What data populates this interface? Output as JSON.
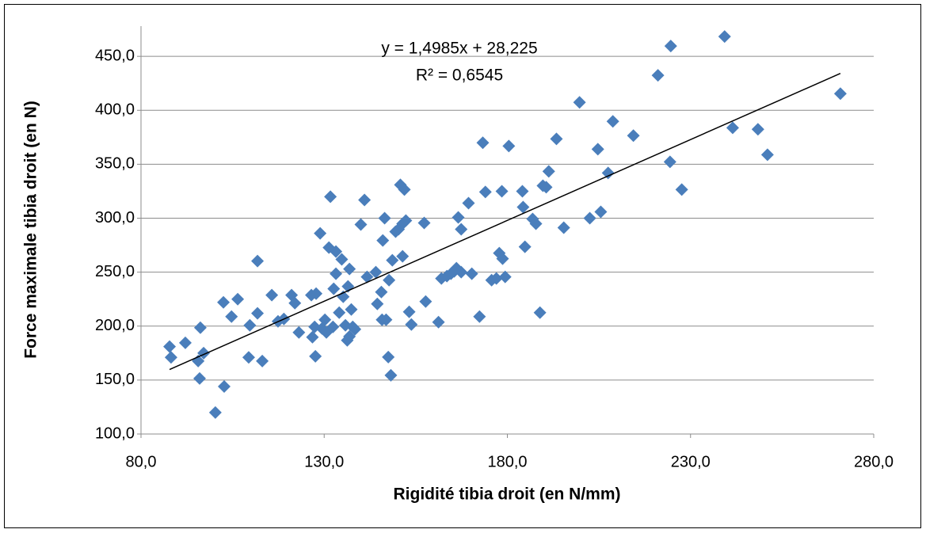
{
  "chart_data": {
    "type": "scatter",
    "x_label": "Rigidité tibia droit (en N/mm)",
    "y_label": "Force maximale tibia droit (en N)",
    "color": "#4a7ebb",
    "x": [
      87.8,
      88.2,
      92.1,
      96.2,
      95.6,
      97.1,
      96.0,
      102.5,
      106.4,
      104.7,
      102.7,
      100.3,
      109.4,
      109.7,
      111.8,
      111.8,
      113.1,
      115.7,
      117.4,
      119.0,
      121.1,
      122.0,
      123.1,
      126.5,
      127.8,
      127.6,
      127.4,
      126.8,
      128.9,
      129.4,
      130.2,
      130.6,
      131.3,
      132.6,
      131.7,
      133.2,
      133.2,
      132.4,
      134.1,
      134.8,
      135.2,
      135.8,
      136.5,
      136.3,
      136.9,
      137.4,
      137.8,
      138.4,
      136.9,
      140.0,
      141.0,
      141.7,
      144.1,
      144.5,
      145.6,
      146.0,
      146.5,
      145.8,
      146.9,
      147.5,
      148.2,
      147.7,
      148.6,
      149.5,
      150.3,
      151.4,
      152.3,
      150.8,
      151.9,
      151.4,
      153.2,
      153.8,
      157.3,
      157.7,
      161.2,
      162.0,
      163.5,
      164.6,
      165.5,
      166.1,
      167.4,
      167.4,
      166.6,
      169.4,
      170.3,
      172.4,
      173.3,
      174.0,
      175.7,
      177.0,
      177.8,
      178.7,
      178.5,
      179.4,
      180.4,
      184.1,
      184.3,
      184.8,
      186.9,
      187.8,
      188.9,
      189.7,
      190.6,
      191.3,
      193.4,
      195.4,
      199.7,
      202.5,
      204.7,
      205.5,
      207.5,
      208.8,
      214.4,
      221.1,
      224.4,
      224.6,
      227.6,
      239.3,
      241.5,
      248.4,
      251.0,
      270.9
    ],
    "values": [
      181.0,
      171.0,
      184.5,
      198.5,
      167.6,
      175.0,
      151.5,
      222.0,
      225.0,
      208.8,
      144.0,
      119.9,
      171.0,
      200.7,
      211.8,
      260.3,
      167.6,
      228.7,
      204.4,
      206.6,
      228.7,
      221.3,
      194.1,
      228.7,
      230.1,
      172.0,
      199.3,
      189.7,
      286.0,
      197.8,
      205.9,
      194.1,
      272.8,
      234.6,
      319.9,
      269.1,
      248.5,
      199.3,
      212.5,
      261.8,
      227.2,
      200.7,
      236.8,
      186.8,
      252.9,
      215.4,
      199.3,
      197.1,
      190.4,
      294.1,
      316.9,
      245.6,
      250.0,
      220.6,
      231.6,
      279.4,
      300.0,
      205.9,
      205.9,
      171.3,
      154.4,
      242.6,
      261.0,
      287.5,
      289.7,
      294.9,
      297.8,
      330.9,
      326.5,
      264.7,
      213.2,
      201.5,
      295.6,
      222.8,
      203.7,
      244.1,
      246.3,
      248.5,
      250.7,
      253.7,
      250.0,
      289.7,
      300.7,
      314.0,
      248.5,
      208.8,
      369.9,
      324.3,
      242.6,
      244.1,
      267.6,
      262.5,
      325.0,
      245.6,
      366.9,
      325.0,
      310.3,
      273.5,
      299.3,
      294.9,
      212.5,
      330.1,
      328.7,
      343.4,
      373.5,
      291.2,
      407.4,
      300.0,
      364.0,
      305.9,
      341.9,
      389.7,
      376.5,
      432.4,
      352.2,
      459.6,
      326.5,
      468.4,
      383.8,
      382.4,
      358.8,
      415.4
    ],
    "trendline": {
      "slope": 1.4985,
      "intercept": 28.225,
      "equation": "y = 1,4985x + 28,225",
      "r2_label": "R² = 0,6545"
    },
    "xlim": [
      80,
      280
    ],
    "ylim": [
      100,
      478
    ],
    "xticks": [
      {
        "value": 80,
        "label": "80,0"
      },
      {
        "value": 130,
        "label": "130,0"
      },
      {
        "value": 180,
        "label": "180,0"
      },
      {
        "value": 230,
        "label": "230,0"
      },
      {
        "value": 280,
        "label": "280,0"
      }
    ],
    "yticks": [
      {
        "value": 100,
        "label": "100,0"
      },
      {
        "value": 150,
        "label": "150,0"
      },
      {
        "value": 200,
        "label": "200,0"
      },
      {
        "value": 250,
        "label": "250,0"
      },
      {
        "value": 300,
        "label": "300,0"
      },
      {
        "value": 350,
        "label": "350,0"
      },
      {
        "value": 400,
        "label": "400,0"
      },
      {
        "value": 450,
        "label": "450,0"
      }
    ],
    "grid": true
  }
}
